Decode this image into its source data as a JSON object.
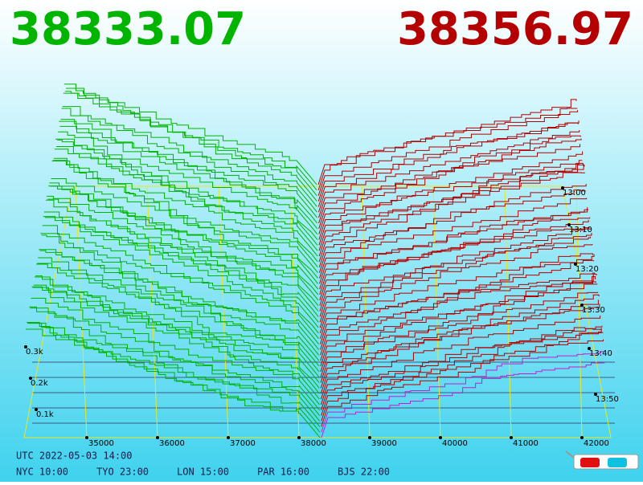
{
  "header": {
    "bid": "38333.07",
    "ask": "38356.97"
  },
  "price_axis": [
    "35000",
    "36000",
    "37000",
    "38000",
    "39000",
    "40000",
    "41000",
    "42000"
  ],
  "depth_axis": [
    "0.3k",
    "0.2k",
    "0.1k"
  ],
  "time_axis": [
    "13:00",
    "13:10",
    "13:20",
    "13:30",
    "13:40",
    "13:50"
  ],
  "footer": {
    "utc": "UTC 2022-05-03 14:00",
    "clocks": [
      "NYC 10:00",
      "TYO 23:00",
      "LON 15:00",
      "PAR 16:00",
      "BJS 22:00"
    ]
  }
}
